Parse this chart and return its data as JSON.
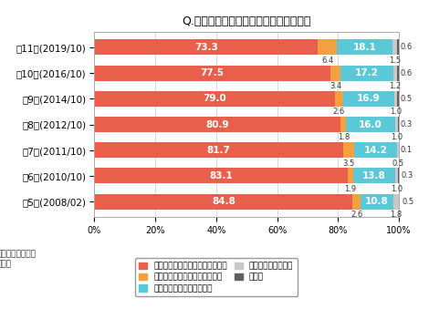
{
  "title": "Q.所有しているデジタルカメラのタイプ",
  "categories": [
    "第11回(2019/10)",
    "第10回(2016/10)",
    "第9回(2014/10)",
    "第8回(2012/10)",
    "第7回(2011/10)",
    "第6回(2010/10)",
    "第5回(2008/02)"
  ],
  "series": {
    "compact": [
      73.3,
      77.5,
      79.0,
      80.9,
      81.7,
      83.1,
      84.8
    ],
    "slr": [
      6.4,
      3.4,
      2.6,
      1.8,
      3.5,
      1.9,
      2.6
    ],
    "both": [
      18.1,
      17.2,
      16.9,
      16.0,
      14.2,
      13.8,
      10.8
    ],
    "unknown": [
      1.5,
      1.2,
      1.0,
      1.0,
      0.5,
      1.0,
      1.8
    ],
    "no_ans": [
      0.6,
      0.6,
      0.5,
      0.3,
      0.1,
      0.3,
      0.5
    ]
  },
  "colors": {
    "compact": "#E8604C",
    "slr": "#F5A040",
    "both": "#5BC8D8",
    "unknown": "#C8C8C8",
    "no_ans": "#606060"
  },
  "legend_labels": {
    "compact": "コンパクトタイプだけ持っている",
    "slr": "一眼レフタイプだけ持っている",
    "both": "両方のタイプを持っている",
    "unknown": "タイプはわからない",
    "no_ans": "無回答"
  },
  "footnote_line1": "：デジタルカメラ",
  "footnote_line2": "所有者",
  "xlim": [
    0,
    100
  ],
  "xticks": [
    0,
    20,
    40,
    60,
    80,
    100
  ],
  "xticklabels": [
    "0%",
    "20%",
    "40%",
    "60%",
    "80%",
    "100%"
  ],
  "bar_height": 0.6,
  "bg_color": "#FFFFFF",
  "grid_color": "#CCCCCC"
}
